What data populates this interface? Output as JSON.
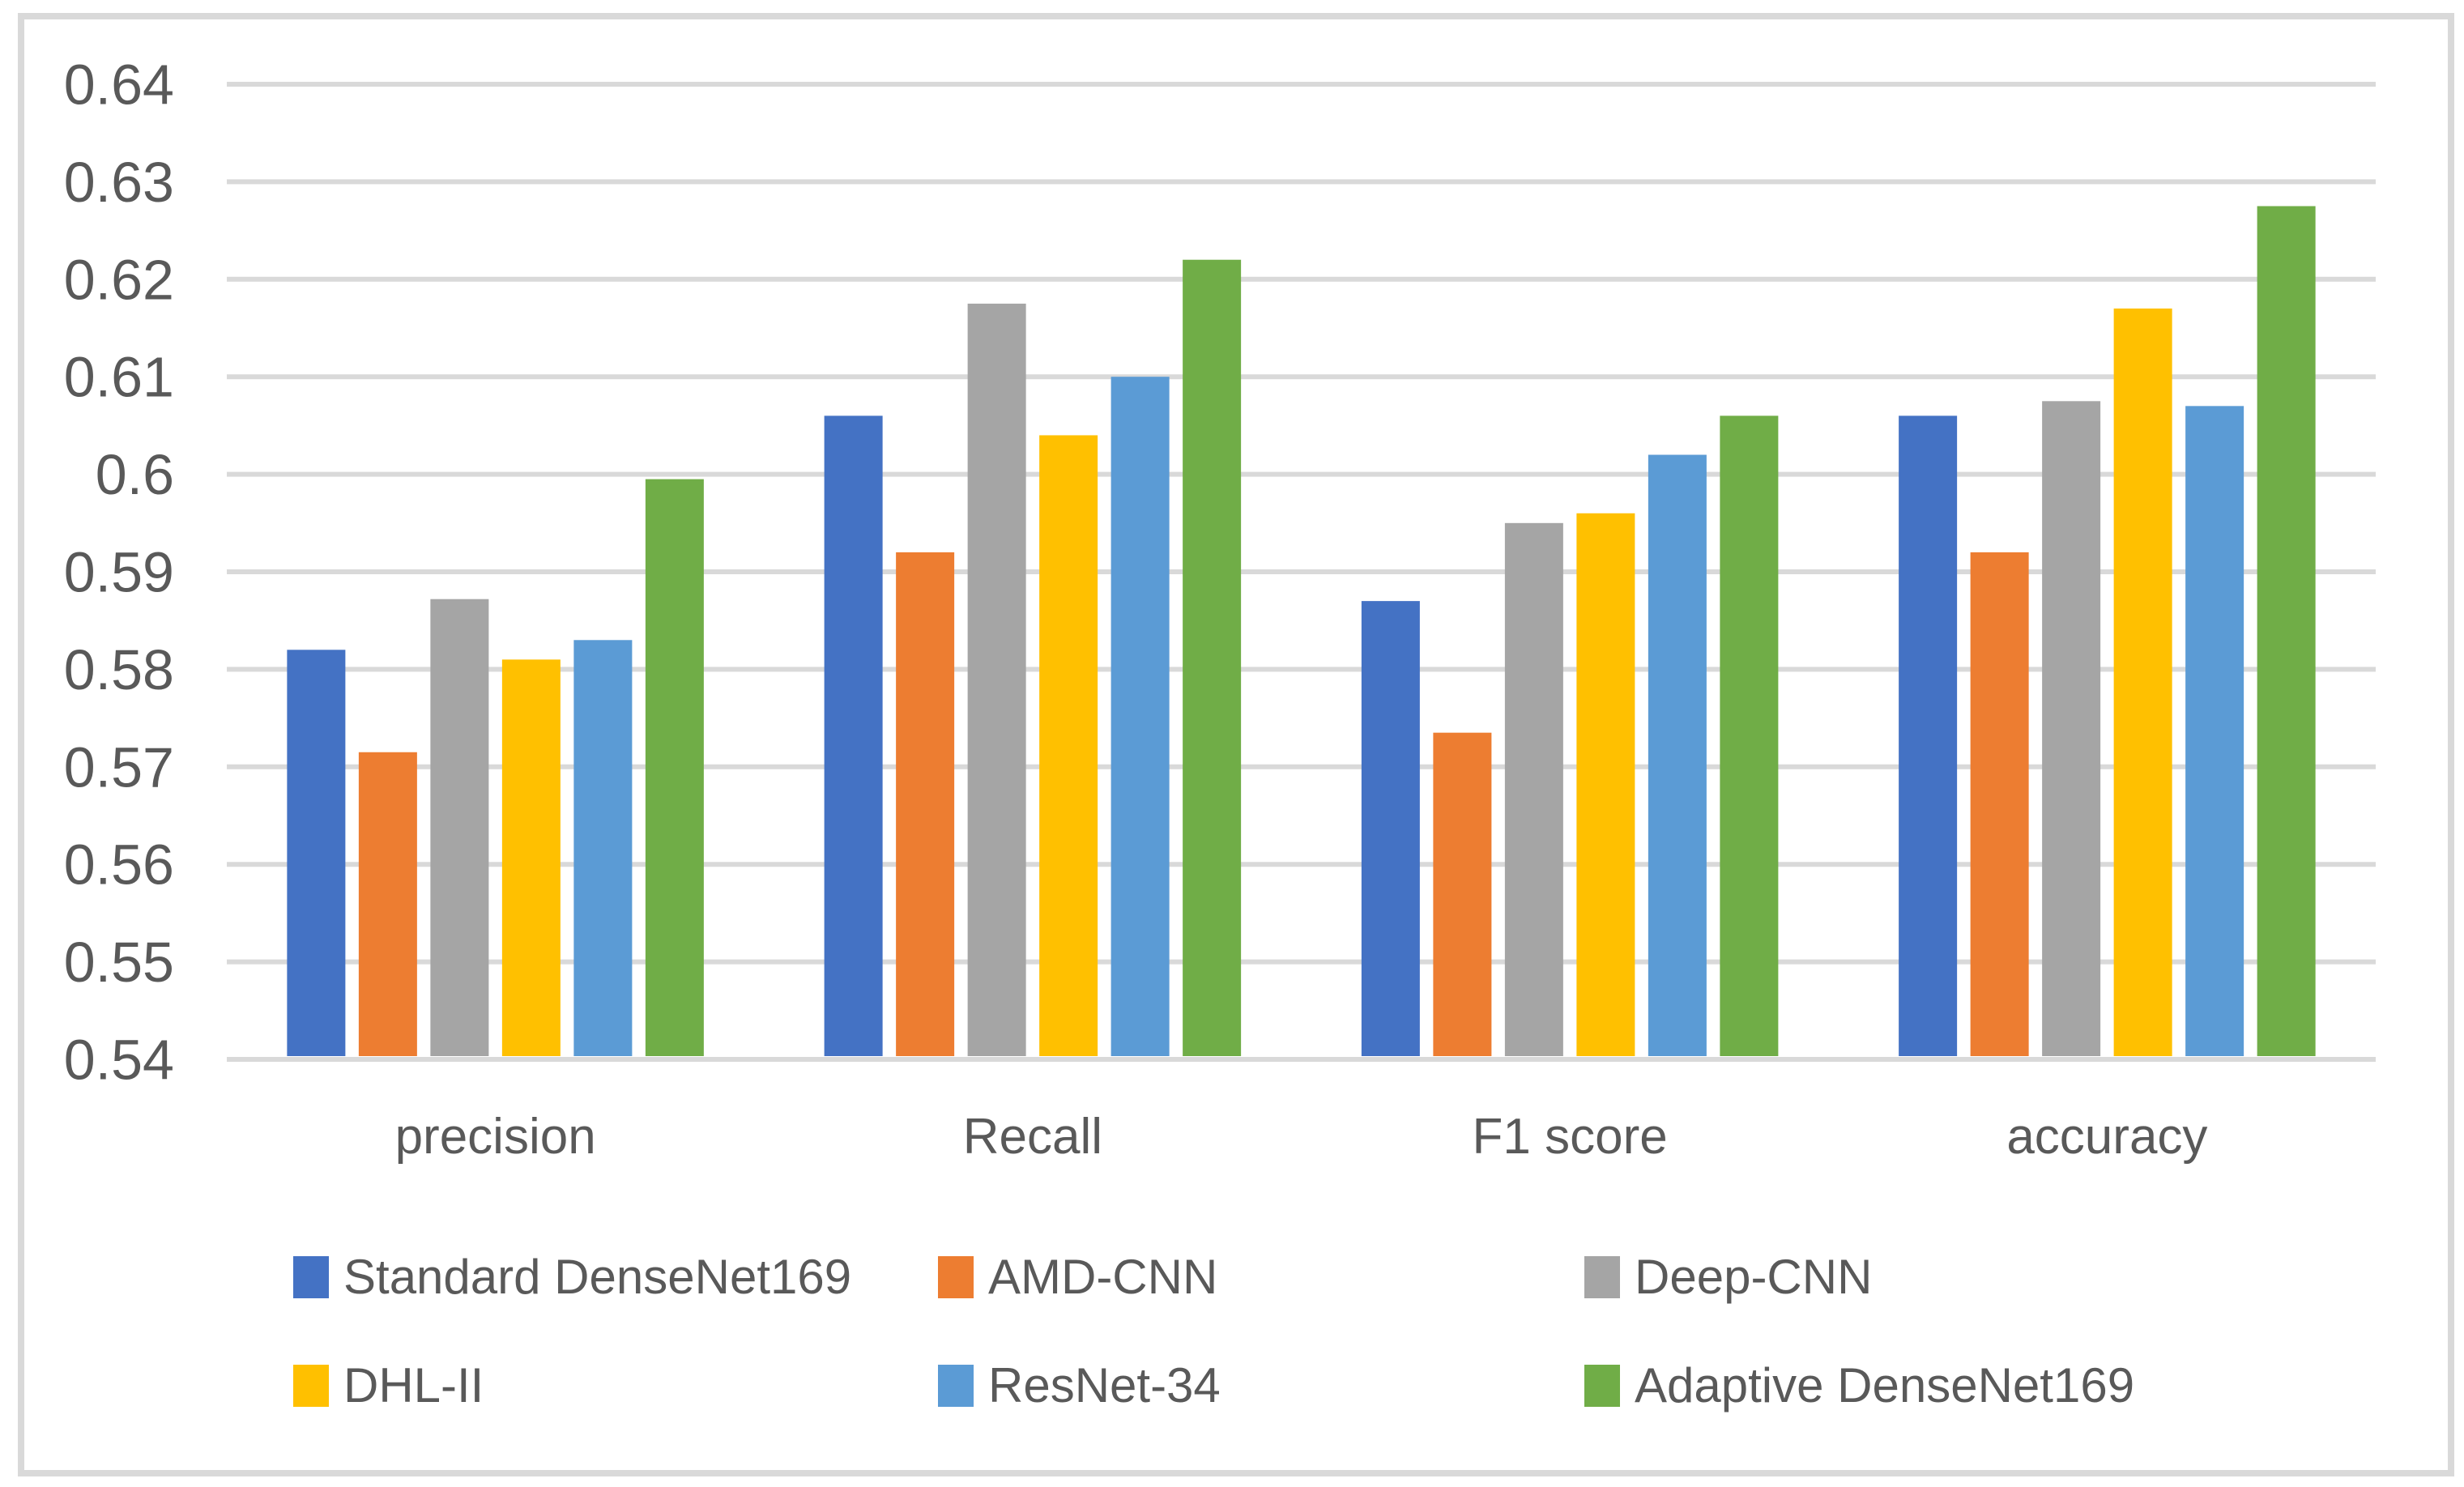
{
  "figure": {
    "background": "#ffffff",
    "frame_border_color": "#d9d9d9",
    "gridline_color": "#d9d9d9",
    "text_color": "#595959"
  },
  "chart_data": {
    "type": "bar",
    "title": "",
    "xlabel": "",
    "ylabel": "",
    "grid": true,
    "legend_position": "bottom",
    "ylim": [
      0.54,
      0.64
    ],
    "y_tick_step": 0.01,
    "y_ticks": [
      "0.64",
      "0.63",
      "0.62",
      "0.61",
      "0.6",
      "0.59",
      "0.58",
      "0.57",
      "0.56",
      "0.55",
      "0.54"
    ],
    "categories": [
      "precision",
      "Recall",
      "F1 score",
      "accuracy"
    ],
    "series": [
      {
        "name": "Standard DenseNet169",
        "color": "#4472C4",
        "values": [
          0.582,
          0.606,
          0.587,
          0.606
        ]
      },
      {
        "name": "AMD-CNN",
        "color": "#ED7D31",
        "values": [
          0.5715,
          0.592,
          0.5735,
          0.592
        ]
      },
      {
        "name": "Deep-CNN",
        "color": "#A5A5A5",
        "values": [
          0.5872,
          0.6175,
          0.595,
          0.6075
        ]
      },
      {
        "name": "DHL-II",
        "color": "#FFC000",
        "values": [
          0.581,
          0.604,
          0.596,
          0.617
        ]
      },
      {
        "name": "ResNet-34",
        "color": "#5B9BD5",
        "values": [
          0.583,
          0.61,
          0.602,
          0.607
        ]
      },
      {
        "name": "Adaptive DenseNet169",
        "color": "#70AD47",
        "values": [
          0.5995,
          0.622,
          0.606,
          0.6275
        ]
      }
    ]
  }
}
